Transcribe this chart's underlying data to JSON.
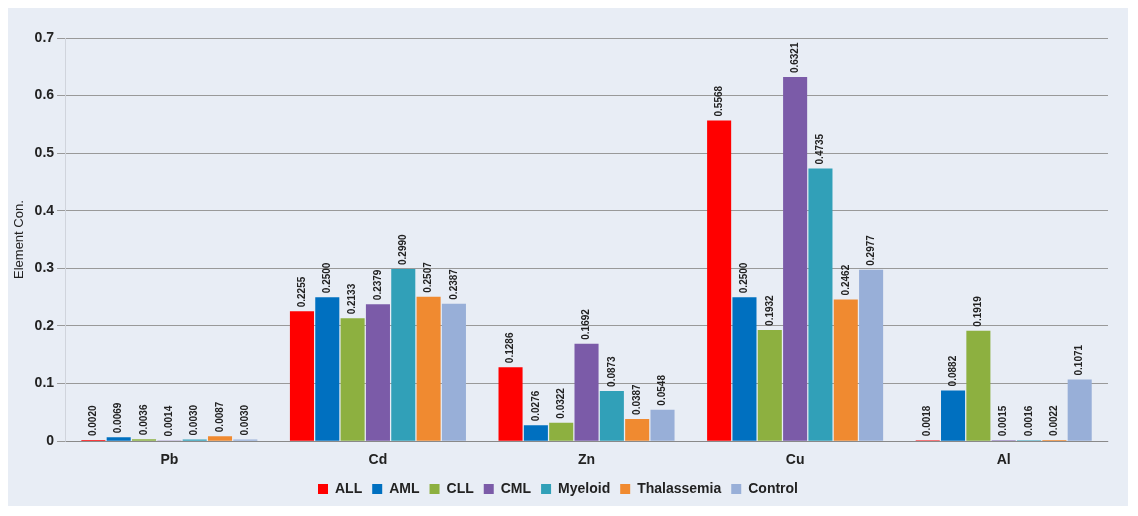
{
  "chart_data": {
    "type": "bar",
    "ylabel": "Element Con.",
    "categories": [
      "Pb",
      "Cd",
      "Zn",
      "Cu",
      "Al"
    ],
    "ylim": [
      0,
      0.7
    ],
    "yticks": [
      0,
      0.1,
      0.2,
      0.3,
      0.4,
      0.5,
      0.6,
      0.7
    ],
    "grid": "y",
    "legend": "bottom",
    "series": [
      {
        "name": "ALL",
        "color": "#ff0000",
        "values": [
          0.002,
          0.2255,
          0.1286,
          0.5568,
          0.0018
        ],
        "value_labels": [
          "0.0020",
          "0.2255",
          "0.1286",
          "0.5568",
          "0.0018"
        ]
      },
      {
        "name": "AML",
        "color": "#0070c0",
        "values": [
          0.0069,
          0.25,
          0.0276,
          0.25,
          0.0882
        ],
        "value_labels": [
          "0.0069",
          "0.2500",
          "0.0276",
          "0.2500",
          "0.0882"
        ]
      },
      {
        "name": "CLL",
        "color": "#8db040",
        "values": [
          0.0036,
          0.2133,
          0.0322,
          0.1932,
          0.1919
        ],
        "value_labels": [
          "0.0036",
          "0.2133",
          "0.0322",
          "0.1932",
          "0.1919"
        ]
      },
      {
        "name": "CML",
        "color": "#7b5ba8",
        "values": [
          0.0014,
          0.2379,
          0.1692,
          0.6321,
          0.0015
        ],
        "value_labels": [
          "0.0014",
          "0.2379",
          "0.1692",
          "0.6321",
          "0.0015"
        ]
      },
      {
        "name": "Myeloid",
        "color": "#31a0b8",
        "values": [
          0.003,
          0.299,
          0.0873,
          0.4735,
          0.0016
        ],
        "value_labels": [
          "0.0030",
          "0.2990",
          "0.0873",
          "0.4735",
          "0.0016"
        ]
      },
      {
        "name": "Thalassemia",
        "color": "#f08a30",
        "values": [
          0.0087,
          0.2507,
          0.0387,
          0.2462,
          0.0022
        ],
        "value_labels": [
          "0.0087",
          "0.2507",
          "0.0387",
          "0.2462",
          "0.0022"
        ]
      },
      {
        "name": "Control",
        "color": "#98afd8",
        "values": [
          0.003,
          0.2387,
          0.0548,
          0.2977,
          0.1071
        ],
        "value_labels": [
          "0.0030",
          "0.2387",
          "0.0548",
          "0.2977",
          "0.1071"
        ]
      }
    ]
  }
}
